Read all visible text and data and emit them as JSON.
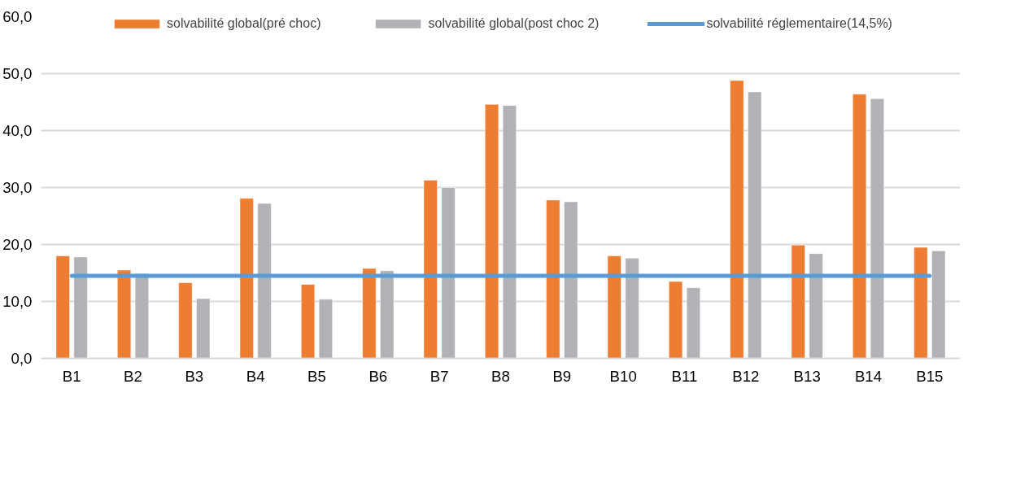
{
  "chart_data": {
    "type": "bar",
    "categories": [
      "B1",
      "B2",
      "B3",
      "B4",
      "B5",
      "B6",
      "B7",
      "B8",
      "B9",
      "B10",
      "B11",
      "B12",
      "B13",
      "B14",
      "B15"
    ],
    "series": [
      {
        "name": "solvabilité global(pré choc)",
        "color": "#ed7d31",
        "values": [
          18.0,
          15.5,
          13.3,
          28.1,
          13.0,
          15.8,
          31.3,
          44.6,
          27.8,
          18.0,
          13.5,
          48.8,
          19.9,
          46.4,
          19.5
        ]
      },
      {
        "name": "solvabilité global(post choc 2)",
        "color": "#b1b2b5",
        "values": [
          17.8,
          14.9,
          10.5,
          27.2,
          10.4,
          15.4,
          30.0,
          44.4,
          27.5,
          17.6,
          12.4,
          46.8,
          18.4,
          45.6,
          18.9
        ]
      },
      {
        "name": "solvabilité réglementaire(14,5%)",
        "color": "#5b9bd5",
        "type": "line",
        "values": [
          14.5,
          14.5,
          14.5,
          14.5,
          14.5,
          14.5,
          14.5,
          14.5,
          14.5,
          14.5,
          14.5,
          14.5,
          14.5,
          14.5,
          14.5
        ]
      }
    ],
    "ylim": [
      0,
      60
    ],
    "yticks": [
      {
        "value": 0,
        "label": "0,0"
      },
      {
        "value": 10,
        "label": "10,0"
      },
      {
        "value": 20,
        "label": "20,0"
      },
      {
        "value": 30,
        "label": "30,0"
      },
      {
        "value": 40,
        "label": "40,0"
      },
      {
        "value": 50,
        "label": "50,0"
      },
      {
        "value": 60,
        "label": "60,0"
      }
    ],
    "grid": "y",
    "legend": "top"
  }
}
